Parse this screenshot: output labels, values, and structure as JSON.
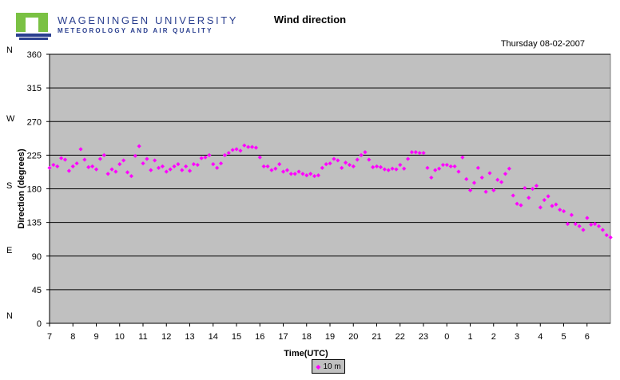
{
  "header": {
    "org_line1": "WAGENINGEN UNIVERSITY",
    "org_line2": "METEOROLOGY AND AIR QUALITY",
    "title": "Wind direction",
    "date": "Thursday 08-02-2007"
  },
  "compass": [
    {
      "label": "N",
      "value": 360
    },
    {
      "label": "W",
      "value": 270
    },
    {
      "label": "S",
      "value": 180
    },
    {
      "label": "E",
      "value": 90
    },
    {
      "label": "N",
      "value": 0
    }
  ],
  "colors": {
    "plot_bg": "#c0c0c0",
    "marker": "#ff00ff",
    "logo_green": "#7ac143",
    "logo_blue": "#2a3f8f"
  },
  "chart_data": {
    "type": "scatter",
    "title": "Wind direction",
    "xlabel": "Time(UTC)",
    "ylabel": "Direction (degrees)",
    "ylim": [
      0,
      360
    ],
    "yticks": [
      0,
      45,
      90,
      135,
      180,
      225,
      270,
      315,
      360
    ],
    "xticks": [
      "7",
      "8",
      "9",
      "10",
      "11",
      "12",
      "13",
      "14",
      "15",
      "16",
      "17",
      "18",
      "19",
      "20",
      "21",
      "22",
      "23",
      "0",
      "1",
      "2",
      "3",
      "4",
      "5",
      "6"
    ],
    "grid": true,
    "legend_position": "bottom-center",
    "series": [
      {
        "name": "10 m",
        "marker": "diamond",
        "x_start": 7,
        "x_step": 0.1667,
        "values": [
          208,
          212,
          210,
          221,
          219,
          204,
          210,
          214,
          233,
          219,
          209,
          210,
          206,
          220,
          225,
          200,
          206,
          203,
          213,
          218,
          202,
          197,
          224,
          237,
          214,
          220,
          205,
          218,
          208,
          210,
          203,
          206,
          210,
          213,
          205,
          210,
          204,
          213,
          212,
          221,
          222,
          225,
          213,
          208,
          214,
          225,
          228,
          232,
          233,
          231,
          238,
          236,
          236,
          235,
          222,
          210,
          210,
          205,
          207,
          213,
          203,
          205,
          200,
          200,
          203,
          200,
          198,
          200,
          197,
          198,
          208,
          213,
          214,
          220,
          218,
          208,
          215,
          212,
          210,
          219,
          225,
          229,
          219,
          209,
          210,
          209,
          206,
          205,
          207,
          206,
          212,
          207,
          220,
          229,
          229,
          228,
          228,
          208,
          195,
          205,
          207,
          212,
          212,
          210,
          210,
          203,
          222,
          193,
          178,
          188,
          208,
          195,
          176,
          201,
          178,
          192,
          189,
          200,
          207,
          171,
          160,
          158,
          181,
          168,
          180,
          184,
          155,
          165,
          170,
          157,
          159,
          152,
          150,
          133,
          145,
          133,
          130,
          125,
          141,
          132,
          133,
          130,
          125,
          118,
          115
        ]
      }
    ]
  }
}
